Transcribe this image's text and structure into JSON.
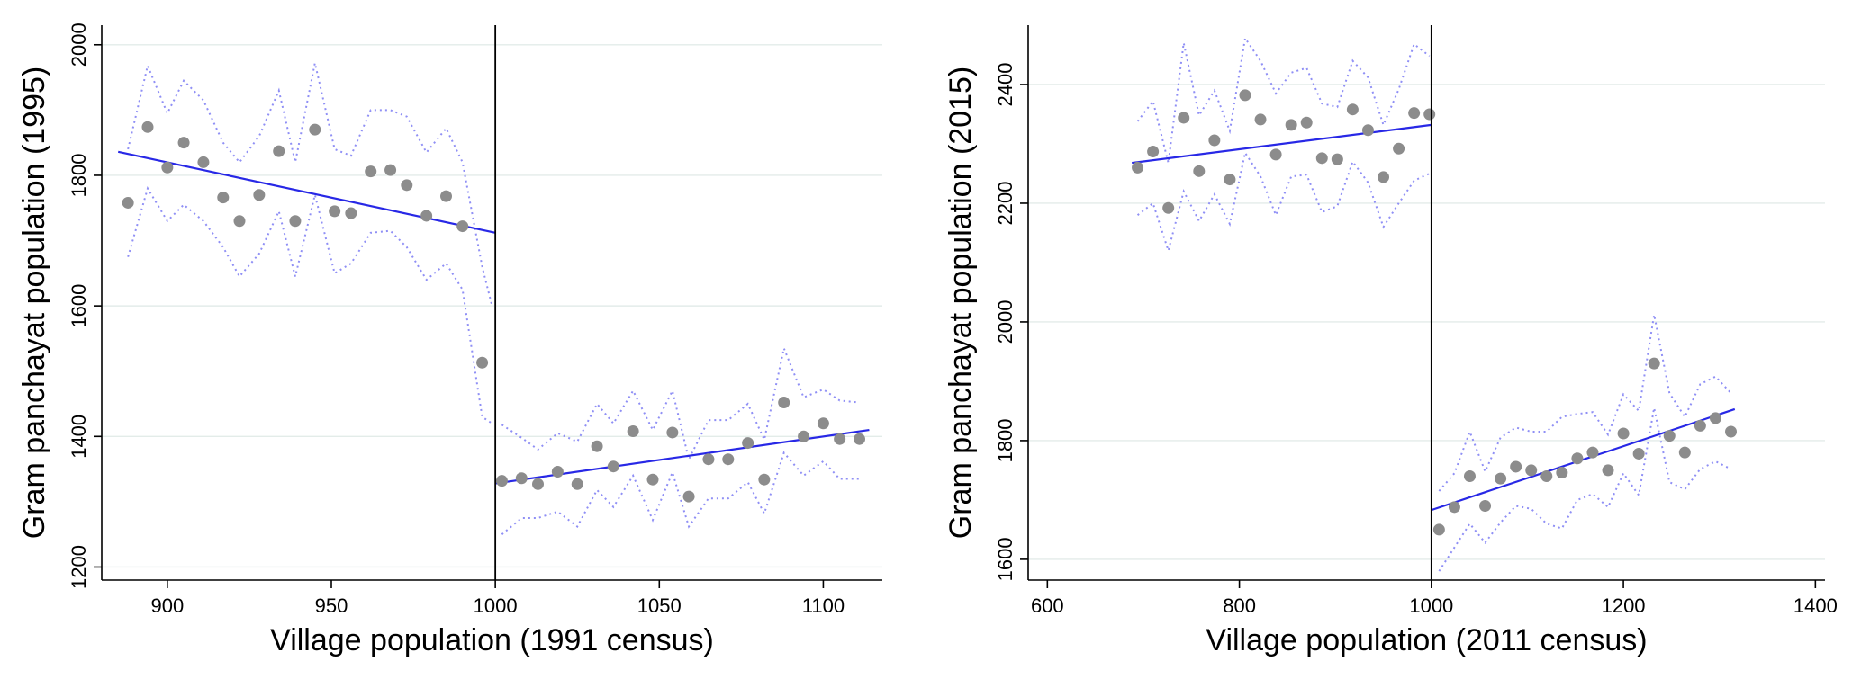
{
  "chart_data": [
    {
      "type": "scatter",
      "xlabel": "Village population (1991 census)",
      "ylabel": "Gram panchayat population (1995)",
      "xlim": [
        880,
        1118
      ],
      "ylim": [
        1180,
        2030
      ],
      "xticks": [
        900,
        950,
        1000,
        1050,
        1100
      ],
      "yticks": [
        1200,
        1400,
        1600,
        1800,
        2000
      ],
      "cutoff": 1000,
      "grid": "horizontal",
      "points": {
        "x": [
          888,
          894,
          900,
          905,
          911,
          917,
          922,
          928,
          934,
          939,
          945,
          951,
          956,
          962,
          968,
          973,
          979,
          985,
          990,
          996,
          1002,
          1008,
          1013,
          1019,
          1025,
          1031,
          1036,
          1042,
          1048,
          1054,
          1059,
          1065,
          1071,
          1077,
          1082,
          1088,
          1094,
          1100,
          1105,
          1111
        ],
        "y": [
          1758,
          1874,
          1812,
          1850,
          1820,
          1766,
          1730,
          1770,
          1837,
          1730,
          1870,
          1745,
          1742,
          1806,
          1808,
          1785,
          1738,
          1768,
          1722,
          1513,
          1332,
          1336,
          1327,
          1346,
          1327,
          1385,
          1354,
          1408,
          1334,
          1406,
          1308,
          1365,
          1365,
          1390,
          1334,
          1452,
          1400,
          1420,
          1396,
          1396
        ]
      },
      "fit_left": {
        "x": [
          885,
          1000
        ],
        "y": [
          1836,
          1712
        ]
      },
      "fit_right": {
        "x": [
          1000,
          1114
        ],
        "y": [
          1328,
          1410
        ]
      },
      "ci_left": {
        "x": [
          888,
          894,
          900,
          905,
          911,
          917,
          922,
          928,
          934,
          939,
          945,
          951,
          956,
          962,
          968,
          973,
          979,
          985,
          990,
          996,
          999
        ],
        "upper": [
          1840,
          1968,
          1895,
          1945,
          1915,
          1850,
          1820,
          1860,
          1930,
          1820,
          1972,
          1840,
          1830,
          1900,
          1900,
          1890,
          1835,
          1872,
          1820,
          1660,
          1600
        ],
        "lower": [
          1675,
          1780,
          1730,
          1755,
          1730,
          1690,
          1645,
          1680,
          1745,
          1645,
          1770,
          1650,
          1665,
          1712,
          1715,
          1690,
          1640,
          1665,
          1625,
          1430,
          1420
        ]
      },
      "ci_right": {
        "x": [
          1002,
          1008,
          1013,
          1019,
          1025,
          1031,
          1036,
          1042,
          1048,
          1054,
          1059,
          1065,
          1071,
          1077,
          1082,
          1088,
          1094,
          1100,
          1105,
          1111
        ],
        "upper": [
          1418,
          1398,
          1380,
          1405,
          1392,
          1450,
          1420,
          1470,
          1410,
          1470,
          1365,
          1425,
          1425,
          1450,
          1395,
          1535,
          1460,
          1472,
          1455,
          1452
        ],
        "lower": [
          1250,
          1275,
          1275,
          1285,
          1262,
          1318,
          1292,
          1340,
          1272,
          1345,
          1262,
          1305,
          1305,
          1330,
          1282,
          1375,
          1340,
          1362,
          1335,
          1335
        ]
      }
    },
    {
      "type": "scatter",
      "xlabel": "Village population (2011 census)",
      "ylabel": "Gram panchayat population (2015)",
      "xlim": [
        580,
        1410
      ],
      "ylim": [
        1565,
        2500
      ],
      "xticks": [
        600,
        800,
        1000,
        1200,
        1400
      ],
      "yticks": [
        1600,
        1800,
        2000,
        2200,
        2400
      ],
      "cutoff": 1000,
      "grid": "horizontal",
      "points": {
        "x": [
          694,
          710,
          726,
          742,
          758,
          774,
          790,
          806,
          822,
          838,
          854,
          870,
          886,
          902,
          918,
          934,
          950,
          966,
          982,
          998,
          1008,
          1024,
          1040,
          1056,
          1072,
          1088,
          1104,
          1120,
          1136,
          1152,
          1168,
          1184,
          1200,
          1216,
          1232,
          1248,
          1264,
          1280,
          1296,
          1312
        ],
        "y": [
          2260,
          2287,
          2192,
          2344,
          2254,
          2306,
          2240,
          2382,
          2341,
          2282,
          2332,
          2336,
          2276,
          2274,
          2358,
          2323,
          2244,
          2292,
          2352,
          2350,
          1650,
          1688,
          1740,
          1690,
          1736,
          1756,
          1750,
          1740,
          1746,
          1770,
          1780,
          1750,
          1812,
          1778,
          1930,
          1808,
          1780,
          1825,
          1838,
          1815
        ]
      },
      "fit_left": {
        "x": [
          688,
          1000
        ],
        "y": [
          2268,
          2332
        ]
      },
      "fit_right": {
        "x": [
          1000,
          1316
        ],
        "y": [
          1683,
          1853
        ]
      },
      "ci_left": {
        "x": [
          694,
          710,
          726,
          742,
          758,
          774,
          790,
          806,
          822,
          838,
          854,
          870,
          886,
          902,
          918,
          934,
          950,
          966,
          982,
          998
        ],
        "upper": [
          2338,
          2372,
          2268,
          2470,
          2348,
          2390,
          2322,
          2478,
          2440,
          2385,
          2420,
          2428,
          2368,
          2362,
          2440,
          2412,
          2332,
          2392,
          2468,
          2448
        ],
        "lower": [
          2180,
          2200,
          2120,
          2220,
          2170,
          2215,
          2165,
          2285,
          2245,
          2180,
          2245,
          2248,
          2185,
          2195,
          2270,
          2235,
          2160,
          2200,
          2238,
          2250
        ]
      },
      "ci_right": {
        "x": [
          1008,
          1024,
          1040,
          1056,
          1072,
          1088,
          1104,
          1120,
          1136,
          1152,
          1168,
          1184,
          1200,
          1216,
          1232,
          1248,
          1264,
          1280,
          1296,
          1312
        ],
        "upper": [
          1715,
          1745,
          1815,
          1748,
          1805,
          1822,
          1815,
          1815,
          1840,
          1845,
          1848,
          1810,
          1878,
          1850,
          2012,
          1880,
          1840,
          1895,
          1908,
          1880
        ],
        "lower": [
          1580,
          1620,
          1660,
          1628,
          1662,
          1690,
          1685,
          1660,
          1652,
          1700,
          1710,
          1688,
          1745,
          1708,
          1855,
          1730,
          1718,
          1752,
          1765,
          1752
        ]
      }
    }
  ]
}
